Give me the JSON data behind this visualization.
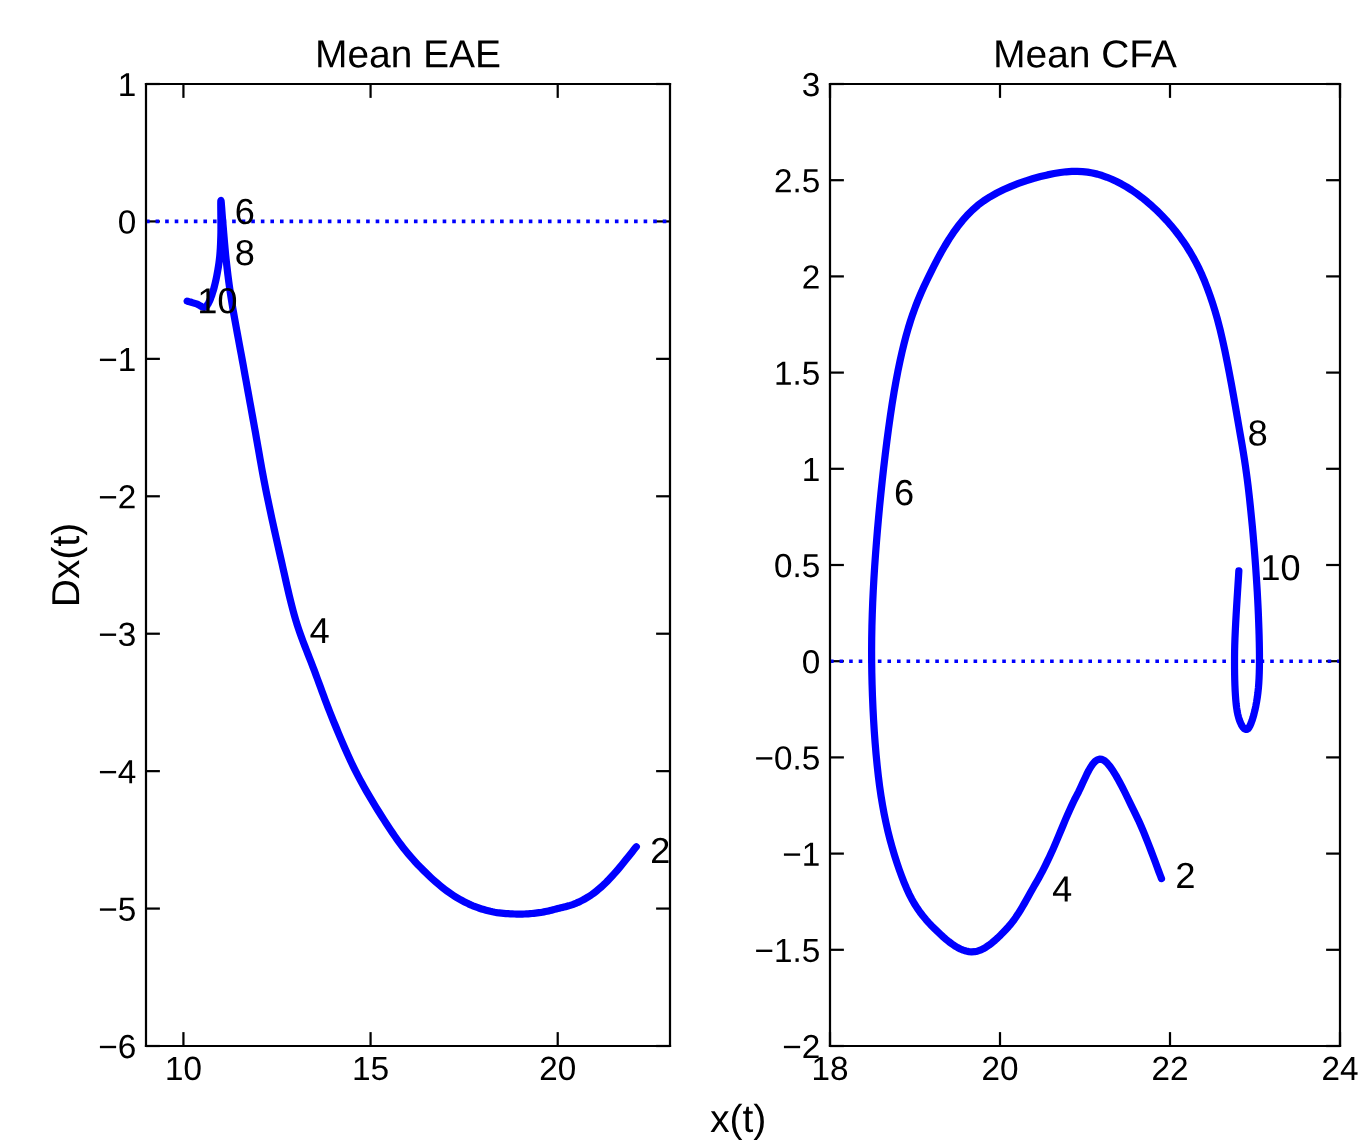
{
  "chart_data": [
    {
      "type": "line",
      "title": "Mean EAE",
      "ylabel": "Dx(t)",
      "xlim": [
        9,
        23
      ],
      "xticks": [
        10,
        15,
        20
      ],
      "ylim": [
        -6,
        1
      ],
      "yticks": [
        -6,
        -5,
        -4,
        -3,
        -2,
        -1,
        0,
        1
      ],
      "grid": false,
      "legend": false,
      "line_style": "solid",
      "series": [
        {
          "color": "#0000ff",
          "x": [
            22.1,
            21.5,
            21.0,
            20.5,
            20.0,
            19.5,
            18.9,
            18.2,
            17.5,
            16.8,
            16.0,
            15.3,
            14.6,
            14.0,
            13.5,
            13.0,
            12.6,
            12.2,
            11.9,
            11.6,
            11.3,
            11.15,
            11.05,
            11.0,
            11.0,
            10.95,
            10.8,
            10.6,
            10.35,
            10.1
          ],
          "values": [
            -4.55,
            -4.75,
            -4.88,
            -4.96,
            -5.0,
            -5.03,
            -5.04,
            -5.02,
            -4.95,
            -4.82,
            -4.6,
            -4.33,
            -4.0,
            -3.63,
            -3.27,
            -2.9,
            -2.45,
            -1.95,
            -1.5,
            -1.05,
            -0.6,
            -0.3,
            0.0,
            0.15,
            -0.1,
            -0.3,
            -0.5,
            -0.62,
            -0.6,
            -0.58
          ]
        }
      ],
      "ref_lines": [
        {
          "axis": "y",
          "value": 0,
          "color": "#0000ff",
          "line_style": "dotted"
        }
      ],
      "annotations": [
        {
          "text": "2",
          "x": 22.1,
          "y": -4.6
        },
        {
          "text": "4",
          "x": 13.0,
          "y": -3.0
        },
        {
          "text": "6",
          "x": 11.0,
          "y": 0.05
        },
        {
          "text": "8",
          "x": 11.0,
          "y": -0.25
        },
        {
          "text": "10",
          "x": 10.0,
          "y": -0.6
        }
      ]
    },
    {
      "type": "line",
      "title": "Mean CFA",
      "xlabel": "x(t)",
      "xlim": [
        18,
        24
      ],
      "xticks": [
        18,
        20,
        22,
        24
      ],
      "ylim": [
        -2,
        3
      ],
      "yticks": [
        -2,
        -1.5,
        -1,
        -0.5,
        0,
        0.5,
        1,
        1.5,
        2,
        2.5,
        3
      ],
      "grid": false,
      "legend": false,
      "line_style": "solid",
      "series": [
        {
          "color": "#0000ff",
          "x": [
            21.9,
            21.6,
            21.2,
            20.9,
            20.6,
            20.4,
            20.1,
            19.7,
            19.3,
            18.9,
            18.6,
            18.49,
            18.57,
            18.8,
            19.14,
            19.74,
            20.71,
            21.43,
            22.11,
            22.53,
            22.83,
            22.96,
            23.04,
            23.04,
            22.92,
            22.79,
            22.76,
            22.81
          ],
          "values": [
            -1.13,
            -0.8,
            -0.51,
            -0.7,
            -1.0,
            -1.17,
            -1.38,
            -1.51,
            -1.42,
            -1.18,
            -0.7,
            0.0,
            0.74,
            1.51,
            1.98,
            2.37,
            2.54,
            2.48,
            2.21,
            1.82,
            1.17,
            0.74,
            0.24,
            -0.14,
            -0.35,
            -0.26,
            0.05,
            0.47
          ]
        }
      ],
      "ref_lines": [
        {
          "axis": "y",
          "value": 0,
          "color": "#0000ff",
          "line_style": "dotted"
        }
      ],
      "annotations": [
        {
          "text": "2",
          "x": 21.9,
          "y": -1.13
        },
        {
          "text": "4",
          "x": 20.45,
          "y": -1.2
        },
        {
          "text": "6",
          "x": 18.59,
          "y": 0.86
        },
        {
          "text": "8",
          "x": 22.75,
          "y": 1.17
        },
        {
          "text": "10",
          "x": 22.9,
          "y": 0.47
        }
      ]
    }
  ]
}
